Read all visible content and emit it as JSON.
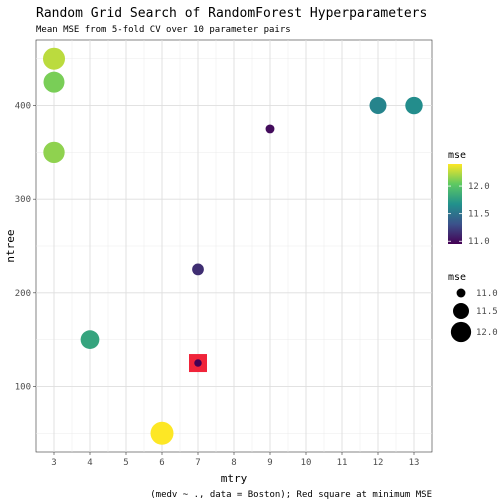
{
  "chart_data": {
    "type": "scatter",
    "title": "Random Grid Search of RandomForest Hyperparameters",
    "subtitle": "Mean MSE from 5-fold CV over 10 parameter pairs",
    "caption": "(medv ~ ., data = Boston); Red square at minimum MSE",
    "xlabel": "mtry",
    "ylabel": "ntree",
    "xlim": [
      2.5,
      13.5
    ],
    "ylim": [
      30,
      470
    ],
    "x_ticks": [
      3,
      4,
      5,
      6,
      7,
      8,
      9,
      10,
      11,
      12,
      13
    ],
    "y_ticks": [
      100,
      200,
      300,
      400
    ],
    "grid": true,
    "points": [
      {
        "mtry": 3,
        "ntree": 450,
        "mse": 12.25
      },
      {
        "mtry": 3,
        "ntree": 425,
        "mse": 12.1
      },
      {
        "mtry": 3,
        "ntree": 350,
        "mse": 12.15
      },
      {
        "mtry": 12,
        "ntree": 400,
        "mse": 11.6
      },
      {
        "mtry": 13,
        "ntree": 400,
        "mse": 11.65
      },
      {
        "mtry": 9,
        "ntree": 375,
        "mse": 11.0
      },
      {
        "mtry": 7,
        "ntree": 225,
        "mse": 11.15
      },
      {
        "mtry": 4,
        "ntree": 150,
        "mse": 11.8
      },
      {
        "mtry": 7,
        "ntree": 125,
        "mse": 10.95
      },
      {
        "mtry": 6,
        "ntree": 50,
        "mse": 12.4
      }
    ],
    "highlight": {
      "mtry": 7,
      "ntree": 125,
      "label": "minimum MSE",
      "color": "#f0243a"
    },
    "color_legend": {
      "title": "mse",
      "range": [
        10.95,
        12.4
      ],
      "ticks": [
        11.0,
        11.5,
        12.0
      ],
      "tick_labels": [
        "11.0",
        "11.5",
        "12.0"
      ],
      "palette": [
        "#440154",
        "#3b528b",
        "#21918c",
        "#5ec962",
        "#fde725"
      ]
    },
    "size_legend": {
      "title": "mse",
      "values": [
        11.0,
        11.5,
        12.0
      ],
      "labels": [
        "11.0",
        "11.5",
        "12.0"
      ]
    }
  }
}
